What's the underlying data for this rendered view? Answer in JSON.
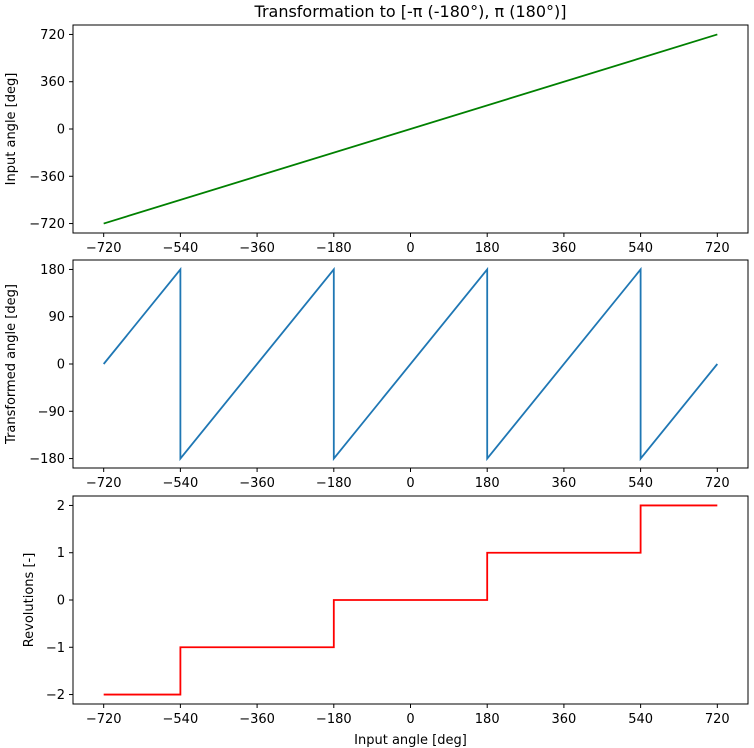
{
  "chart_data": [
    {
      "type": "line",
      "title": "Transformation to [-π (-180°), π (180°)]",
      "xlabel": "",
      "ylabel": "Input angle [deg]",
      "xlim": [
        -792,
        792
      ],
      "ylim": [
        -792,
        792
      ],
      "xticks": [
        -720,
        -540,
        -360,
        -180,
        0,
        180,
        360,
        540,
        720
      ],
      "xticklabels": [
        "−720",
        "−540",
        "−360",
        "−180",
        "0",
        "180",
        "360",
        "540",
        "720"
      ],
      "yticks": [
        -720,
        -360,
        0,
        360,
        720
      ],
      "yticklabels": [
        "−720",
        "−360",
        "0",
        "360",
        "720"
      ],
      "grid": false,
      "series": [
        {
          "color": "#008000",
          "x": [
            -720,
            720
          ],
          "y": [
            -720,
            720
          ]
        }
      ]
    },
    {
      "type": "line",
      "title": "",
      "xlabel": "",
      "ylabel": "Transformed angle [deg]",
      "xlim": [
        -792,
        792
      ],
      "ylim": [
        -198,
        198
      ],
      "xticks": [
        -720,
        -540,
        -360,
        -180,
        0,
        180,
        360,
        540,
        720
      ],
      "xticklabels": [
        "−720",
        "−540",
        "−360",
        "−180",
        "0",
        "180",
        "360",
        "540",
        "720"
      ],
      "yticks": [
        -180,
        -90,
        0,
        90,
        180
      ],
      "yticklabels": [
        "−180",
        "−90",
        "0",
        "90",
        "180"
      ],
      "grid": false,
      "series": [
        {
          "color": "#1f77b4",
          "x": [
            -720,
            -540,
            -540,
            -180,
            -180,
            180,
            180,
            540,
            540,
            720
          ],
          "y": [
            0,
            180,
            -180,
            180,
            -180,
            180,
            -180,
            180,
            -180,
            0
          ]
        }
      ]
    },
    {
      "type": "line",
      "title": "",
      "xlabel": "Input angle [deg]",
      "ylabel": "Revolutions [-]",
      "xlim": [
        -792,
        792
      ],
      "ylim": [
        -2.2,
        2.2
      ],
      "xticks": [
        -720,
        -540,
        -360,
        -180,
        0,
        180,
        360,
        540,
        720
      ],
      "xticklabels": [
        "−720",
        "−540",
        "−360",
        "−180",
        "0",
        "180",
        "360",
        "540",
        "720"
      ],
      "yticks": [
        -2,
        -1,
        0,
        1,
        2
      ],
      "yticklabels": [
        "−2",
        "−1",
        "0",
        "1",
        "2"
      ],
      "grid": false,
      "series": [
        {
          "color": "#ff0000",
          "x": [
            -720,
            -540,
            -540,
            -180,
            -180,
            180,
            180,
            540,
            540,
            720
          ],
          "y": [
            -2,
            -2,
            -1,
            -1,
            0,
            0,
            1,
            1,
            2,
            2
          ]
        }
      ]
    }
  ]
}
